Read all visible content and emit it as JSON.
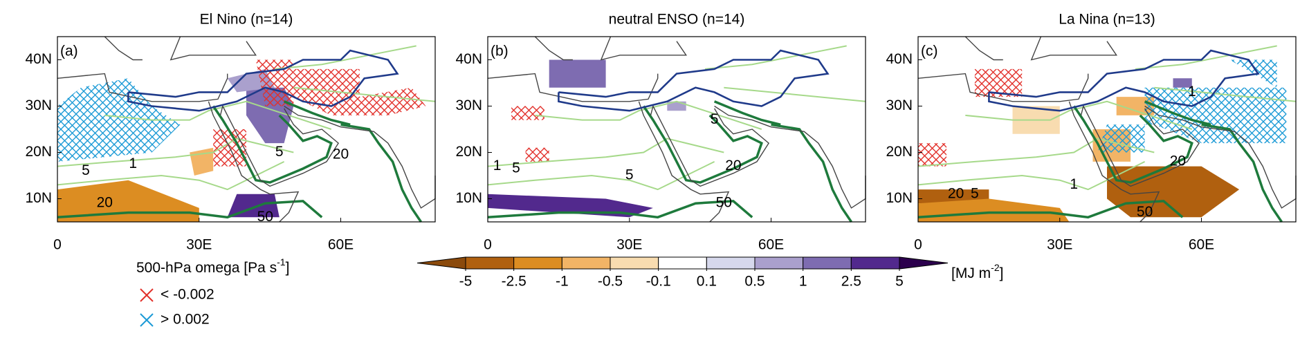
{
  "panels": [
    {
      "title": "El Nino (n=14)",
      "label": "(a)",
      "contour_labels": [
        "5",
        "1",
        "20",
        "5",
        "20",
        "50"
      ]
    },
    {
      "title": "neutral ENSO (n=14)",
      "label": "(b)",
      "contour_labels": [
        "5",
        "1",
        "5",
        "20",
        "50",
        "5"
      ]
    },
    {
      "title": "La Nina (n=13)",
      "label": "(c)",
      "contour_labels": [
        "5",
        "1",
        "20",
        "20",
        "50",
        "1"
      ]
    }
  ],
  "x_axis": {
    "xlim": [
      0,
      80
    ],
    "xticks": [
      0,
      {
        "value": 30,
        "label": "30E"
      },
      {
        "value": 60,
        "label": "60E"
      }
    ]
  },
  "y_axis": {
    "ylim": [
      5,
      45
    ],
    "yticks": [
      {
        "value": 10,
        "label": "10N"
      },
      {
        "value": 20,
        "label": "20N"
      },
      {
        "value": 30,
        "label": "30N"
      },
      {
        "value": 40,
        "label": "40N"
      }
    ]
  },
  "colorbar": {
    "ticks": [
      -5,
      -2.5,
      -1,
      -0.5,
      -0.1,
      0.1,
      0.5,
      1,
      2.5,
      5
    ],
    "colors": [
      "#8b4a0c",
      "#b0600f",
      "#dc8d22",
      "#f2b466",
      "#f8dcb0",
      "#ffffff",
      "#d6d8ec",
      "#aaa0cd",
      "#7e6cb1",
      "#52298d",
      "#2c004d"
    ],
    "unit": {
      "base": "[MJ m",
      "exponent": "-2",
      "close": "]"
    }
  },
  "legend": {
    "title": {
      "base": "500-hPa omega [Pa s",
      "exponent": "-1",
      "close": "]"
    },
    "items": [
      {
        "label": "< -0.002",
        "color": "#e2302a"
      },
      {
        "label": "> 0.002",
        "color": "#1b9ad6"
      }
    ]
  }
}
